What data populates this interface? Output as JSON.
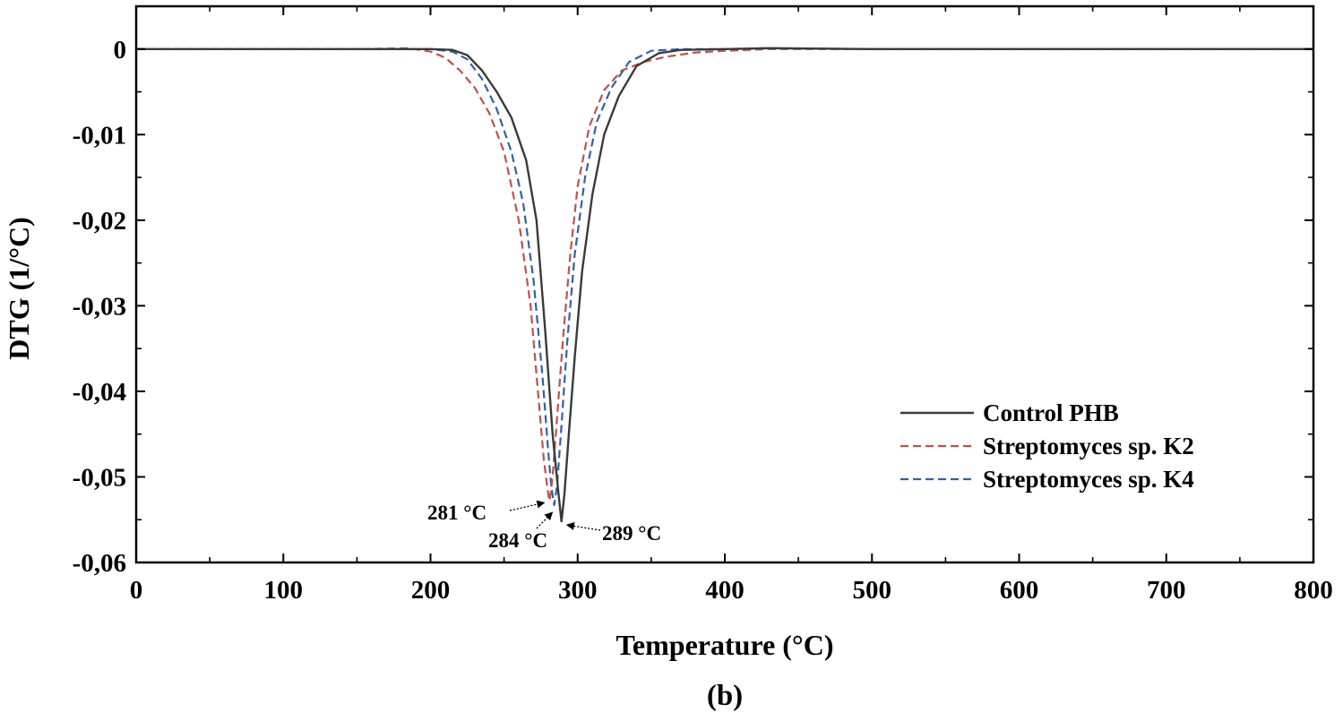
{
  "chart_data": {
    "type": "line",
    "xlabel": "Temperature (°C)",
    "ylabel": "DTG (1/°C)",
    "xlim": [
      0,
      800
    ],
    "ylim": [
      -0.06,
      0.005
    ],
    "x_ticks": [
      0,
      100,
      200,
      300,
      400,
      500,
      600,
      700,
      800
    ],
    "y_ticks": [
      0,
      -0.01,
      -0.02,
      -0.03,
      -0.04,
      -0.05,
      -0.06
    ],
    "x_tick_labels": [
      "0",
      "100",
      "200",
      "300",
      "400",
      "500",
      "600",
      "700",
      "800"
    ],
    "y_tick_labels": [
      "0",
      "-0,01",
      "-0,02",
      "-0,03",
      "-0,04",
      "-0,05",
      "-0,06"
    ],
    "grid": false,
    "legend_position": "lower-right",
    "series": [
      {
        "name": "Control PHB",
        "color": "#3a3a3a",
        "dash": "solid",
        "x": [
          0,
          150,
          200,
          215,
          225,
          235,
          245,
          255,
          265,
          272,
          278,
          283,
          287,
          289,
          291,
          294,
          298,
          303,
          310,
          318,
          328,
          340,
          355,
          370,
          400,
          430,
          500,
          600,
          700,
          800
        ],
        "y": [
          0,
          0,
          0,
          -0.0001,
          -0.0007,
          -0.0025,
          -0.005,
          -0.008,
          -0.013,
          -0.02,
          -0.033,
          -0.045,
          -0.052,
          -0.0552,
          -0.052,
          -0.045,
          -0.036,
          -0.026,
          -0.017,
          -0.01,
          -0.0055,
          -0.002,
          -0.0005,
          -0.0001,
          0,
          0.0001,
          0,
          0,
          0,
          0
        ]
      },
      {
        "name": "Streptomyces sp. K2",
        "color": "#c0504d",
        "dash": "dashed",
        "x": [
          0,
          150,
          185,
          200,
          210,
          220,
          230,
          240,
          250,
          260,
          268,
          273,
          277,
          280,
          281,
          283,
          286,
          290,
          295,
          300,
          308,
          318,
          330,
          345,
          360,
          380,
          400,
          430,
          500,
          600,
          700,
          800
        ],
        "y": [
          0,
          0,
          0.0001,
          -0.0003,
          -0.001,
          -0.0025,
          -0.0045,
          -0.0075,
          -0.012,
          -0.02,
          -0.03,
          -0.04,
          -0.048,
          -0.052,
          -0.0528,
          -0.05,
          -0.043,
          -0.034,
          -0.024,
          -0.016,
          -0.009,
          -0.0048,
          -0.0025,
          -0.0015,
          -0.0009,
          -0.0004,
          -0.0002,
          0,
          0,
          0,
          0,
          0
        ]
      },
      {
        "name": "Streptomyces sp. K4",
        "color": "#2e62a8",
        "dash": "dashed",
        "x": [
          0,
          150,
          200,
          215,
          225,
          235,
          245,
          255,
          263,
          270,
          276,
          280,
          282,
          284,
          286,
          289,
          293,
          298,
          305,
          313,
          323,
          335,
          350,
          370,
          400,
          430,
          500,
          600,
          700,
          800
        ],
        "y": [
          0,
          0,
          0,
          -0.0003,
          -0.0012,
          -0.0035,
          -0.007,
          -0.012,
          -0.018,
          -0.027,
          -0.038,
          -0.047,
          -0.051,
          -0.0533,
          -0.051,
          -0.044,
          -0.034,
          -0.024,
          -0.015,
          -0.0085,
          -0.0045,
          -0.0015,
          -0.0002,
          0,
          0,
          0.0001,
          0,
          0,
          0,
          0
        ]
      }
    ],
    "annotations": [
      {
        "text": "281 °C",
        "x": 281,
        "y": -0.0528
      },
      {
        "text": "284 °C",
        "x": 284,
        "y": -0.0533
      },
      {
        "text": "289 °C",
        "x": 289,
        "y": -0.0552
      }
    ],
    "panel_label": "(b)"
  }
}
